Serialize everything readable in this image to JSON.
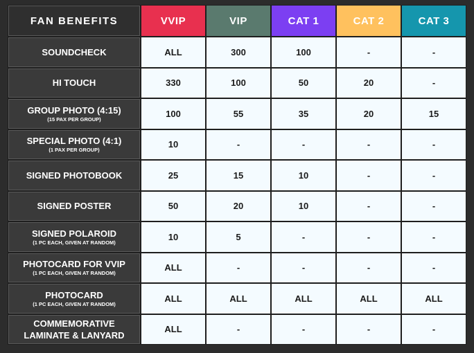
{
  "table": {
    "header": [
      "FAN BENEFITS",
      "VVIP",
      "VIP",
      "CAT 1",
      "CAT 2",
      "CAT 3"
    ],
    "rows": [
      {
        "label": "SOUNDCHECK",
        "values": [
          "ALL",
          "300",
          "100",
          "-",
          "-"
        ]
      },
      {
        "label": "HI TOUCH",
        "values": [
          "330",
          "100",
          "50",
          "20",
          "-"
        ]
      },
      {
        "label": "GROUP PHOTO (4:15)",
        "note": "(15 PAX PER GROUP)",
        "values": [
          "100",
          "55",
          "35",
          "20",
          "15"
        ]
      },
      {
        "label": "SPECIAL PHOTO (4:1)",
        "note": "(1 PAX PER GROUP)",
        "values": [
          "10",
          "-",
          "-",
          "-",
          "-"
        ]
      },
      {
        "label": "SIGNED PHOTOBOOK",
        "values": [
          "25",
          "15",
          "10",
          "-",
          "-"
        ]
      },
      {
        "label": "SIGNED POSTER",
        "values": [
          "50",
          "20",
          "10",
          "-",
          "-"
        ]
      },
      {
        "label": "SIGNED POLAROID",
        "note": "(1 PC EACH, GIVEN AT RANDOM)",
        "values": [
          "10",
          "5",
          "-",
          "-",
          "-"
        ]
      },
      {
        "label": "PHOTOCARD FOR VVIP",
        "note": "(1 PC EACH, GIVEN AT RANDOM)",
        "values": [
          "ALL",
          "-",
          "-",
          "-",
          "-"
        ]
      },
      {
        "label": "PHOTOCARD",
        "note": "(1 PC EACH, GIVEN AT RANDOM)",
        "values": [
          "ALL",
          "ALL",
          "ALL",
          "ALL",
          "ALL"
        ]
      },
      {
        "label": "COMMEMORATIVE LAMINATE & LANYARD",
        "values": [
          "ALL",
          "-",
          "-",
          "-",
          "-"
        ]
      }
    ]
  }
}
